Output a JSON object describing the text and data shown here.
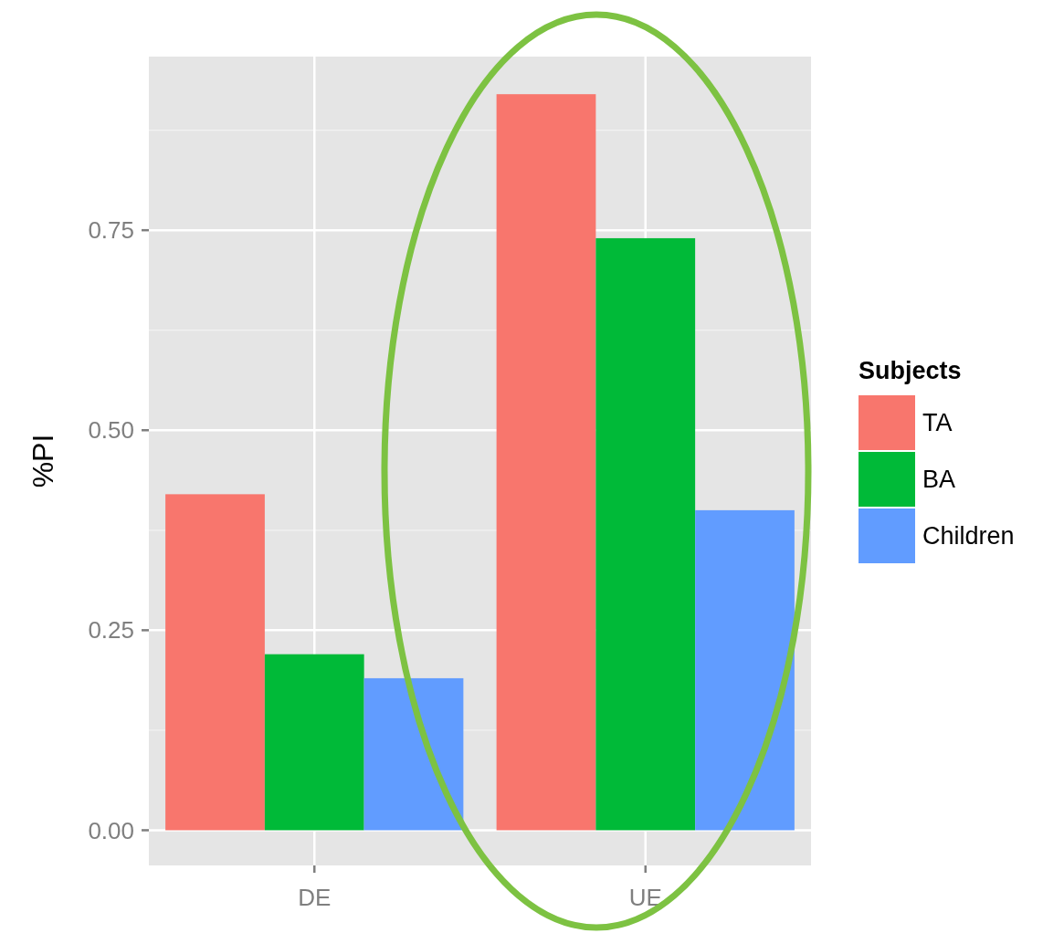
{
  "chart_data": {
    "type": "bar",
    "ylabel": "%PI",
    "legend_title": "Subjects",
    "categories": [
      "DE",
      "UE"
    ],
    "series": [
      {
        "name": "TA",
        "color": "#f8766d",
        "values": [
          0.42,
          0.92
        ]
      },
      {
        "name": "BA",
        "color": "#00ba38",
        "values": [
          0.22,
          0.74
        ]
      },
      {
        "name": "Children",
        "color": "#619cff",
        "values": [
          0.19,
          0.4
        ]
      }
    ],
    "ylim": [
      -0.044,
      0.967
    ],
    "yticks": [
      {
        "value": 0,
        "label": "0.00"
      },
      {
        "value": 0.25,
        "label": "0.25"
      },
      {
        "value": 0.5,
        "label": "0.50"
      },
      {
        "value": 0.75,
        "label": "0.75"
      }
    ],
    "grid": true,
    "legend": "right"
  }
}
